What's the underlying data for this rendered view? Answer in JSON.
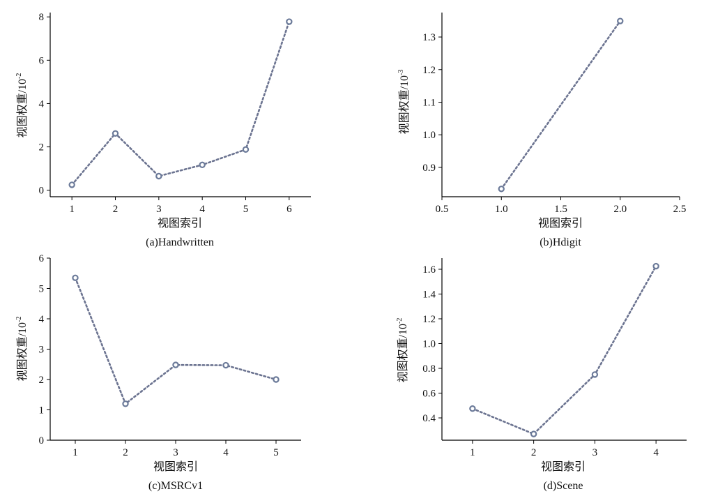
{
  "style": {
    "line_color": "#6b7390",
    "marker_color": "#6b7a99",
    "marker_fill": "#ffffff",
    "axis_color": "#000000"
  },
  "chart_data": [
    {
      "type": "line",
      "caption": "(a)Handwritten",
      "xlabel": "视图索引",
      "ylabel_main": "视图权重/10",
      "ylabel_exp": "-2",
      "x": [
        1,
        2,
        3,
        4,
        5,
        6
      ],
      "series": [
        {
          "values": [
            0.25,
            2.62,
            0.65,
            1.17,
            1.88,
            7.78
          ]
        }
      ],
      "xlim": [
        0.5,
        6.5
      ],
      "ylim": [
        -0.3,
        8.2
      ],
      "xticks": [
        1,
        2,
        3,
        4,
        5,
        6
      ],
      "yticks": [
        0,
        2,
        4,
        6,
        8
      ],
      "xtick_labels": [
        "1",
        "2",
        "3",
        "4",
        "5",
        "6"
      ],
      "ytick_labels": [
        "0",
        "2",
        "4",
        "6",
        "8"
      ],
      "grid": false
    },
    {
      "type": "line",
      "caption": "(b)Hdigit",
      "xlabel": "视图索引",
      "ylabel_main": "视图权重/10",
      "ylabel_exp": "-3",
      "x": [
        1.0,
        2.0
      ],
      "series": [
        {
          "values": [
            0.834,
            1.349
          ]
        }
      ],
      "xlim": [
        0.5,
        2.5
      ],
      "ylim": [
        0.81,
        1.375
      ],
      "xticks": [
        0.5,
        1.0,
        1.5,
        2.0,
        2.5
      ],
      "yticks": [
        0.9,
        1.0,
        1.1,
        1.2,
        1.3
      ],
      "xtick_labels": [
        "0.5",
        "1.0",
        "1.5",
        "2.0",
        "2.5"
      ],
      "ytick_labels": [
        "0.9",
        "1.0",
        "1.1",
        "1.2",
        "1.3"
      ],
      "grid": false
    },
    {
      "type": "line",
      "caption": "(c)MSRCv1",
      "xlabel": "视图索引",
      "ylabel_main": "视图权重/10",
      "ylabel_exp": "-2",
      "x": [
        1,
        2,
        3,
        4,
        5
      ],
      "series": [
        {
          "values": [
            5.35,
            1.2,
            2.48,
            2.47,
            2.0
          ]
        }
      ],
      "xlim": [
        0.5,
        5.5
      ],
      "ylim": [
        0,
        6
      ],
      "xticks": [
        1,
        2,
        3,
        4,
        5
      ],
      "yticks": [
        0,
        1,
        2,
        3,
        4,
        5,
        6
      ],
      "xtick_labels": [
        "1",
        "2",
        "3",
        "4",
        "5"
      ],
      "ytick_labels": [
        "0",
        "1",
        "2",
        "3",
        "4",
        "5",
        "6"
      ],
      "grid": false
    },
    {
      "type": "line",
      "caption": "(d)Scene",
      "xlabel": "视图索引",
      "ylabel_main": "视图权重/10",
      "ylabel_exp": "-2",
      "x": [
        1,
        2,
        3,
        4
      ],
      "series": [
        {
          "values": [
            0.475,
            0.27,
            0.75,
            1.625
          ]
        }
      ],
      "xlim": [
        0.5,
        4.5
      ],
      "ylim": [
        0.22,
        1.69
      ],
      "xticks": [
        1,
        2,
        3,
        4
      ],
      "yticks": [
        0.4,
        0.6,
        0.8,
        1.0,
        1.2,
        1.4,
        1.6
      ],
      "xtick_labels": [
        "1",
        "2",
        "3",
        "4"
      ],
      "ytick_labels": [
        "0.4",
        "0.6",
        "0.8",
        "1.0",
        "1.2",
        "1.4",
        "1.6"
      ],
      "grid": false
    }
  ]
}
